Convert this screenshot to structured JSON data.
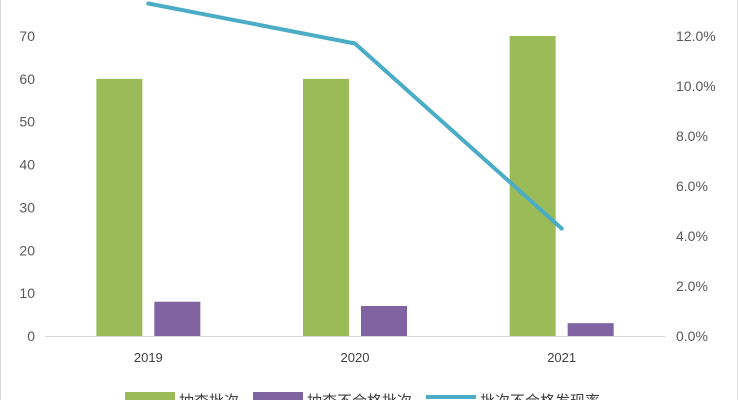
{
  "chart_data": {
    "type": "bar",
    "title": "",
    "categories": [
      "2019",
      "2020",
      "2021"
    ],
    "series": [
      {
        "name": "抽查批次",
        "type": "bar",
        "axis": "left",
        "color": "#9bbb59",
        "values": [
          60,
          60,
          70
        ]
      },
      {
        "name": "抽查不合格批次",
        "type": "bar",
        "axis": "left",
        "color": "#8064a2",
        "values": [
          8,
          7,
          3
        ]
      },
      {
        "name": "批次不合格发现率",
        "type": "line",
        "axis": "right",
        "color": "#4bacc6",
        "values": [
          13.3,
          11.7,
          4.3
        ]
      }
    ],
    "y_left": {
      "min": 0,
      "max": 70,
      "ticks": [
        0,
        10,
        20,
        30,
        40,
        50,
        60,
        70
      ],
      "tick_labels": [
        "0",
        "10",
        "20",
        "30",
        "40",
        "50",
        "60",
        "70"
      ]
    },
    "y_right": {
      "min": 0,
      "max": 12,
      "ticks": [
        0,
        2,
        4,
        6,
        8,
        10,
        12
      ],
      "tick_labels": [
        "0.0%",
        "2.0%",
        "4.0%",
        "6.0%",
        "8.0%",
        "10.0%",
        "12.0%"
      ],
      "unit": "%"
    },
    "xlabel": "",
    "ylabel": "",
    "grid": false,
    "legend_position": "bottom"
  }
}
